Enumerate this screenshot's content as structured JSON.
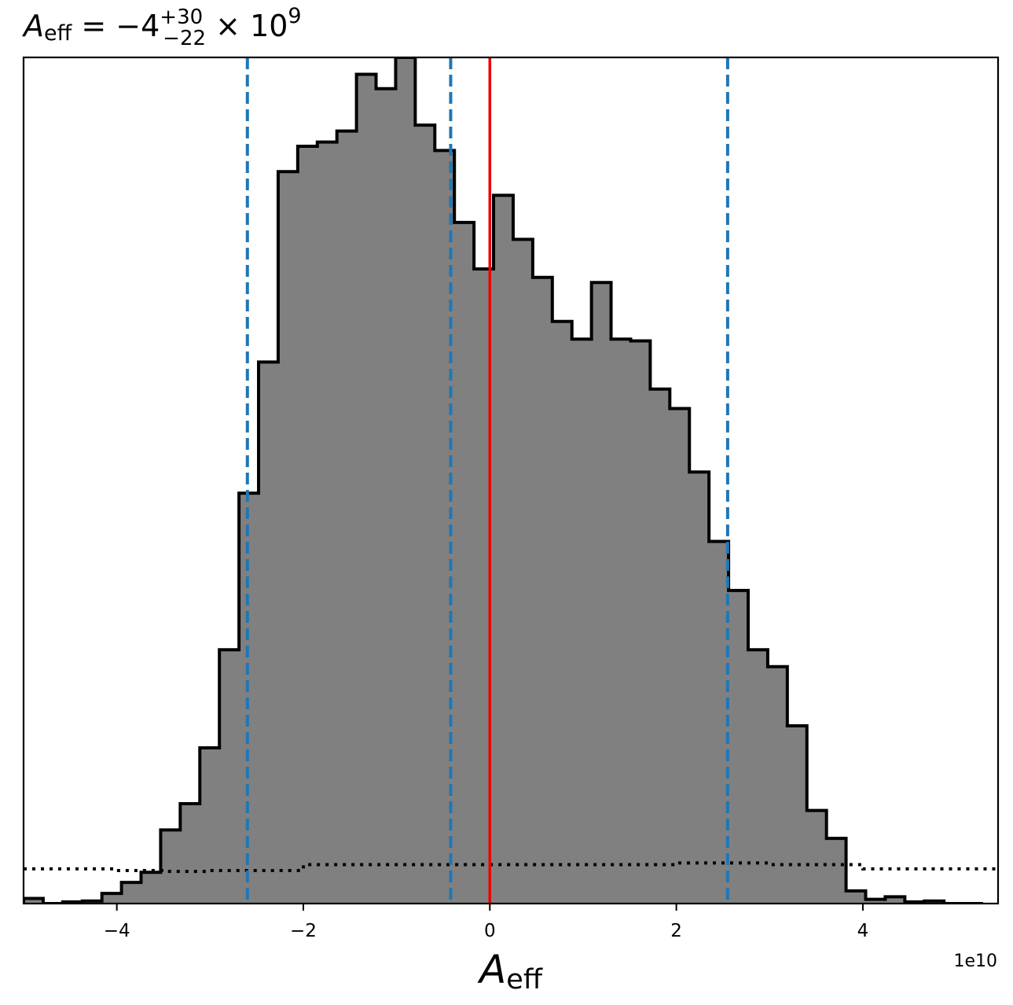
{
  "chart_data": {
    "type": "histogram",
    "title": {
      "symbol": "A",
      "symbol_sub": "eff",
      "equals": "=",
      "median": "−4",
      "err_plus": "+30",
      "err_minus": "−22",
      "times": "×",
      "power_base": "10",
      "power_exp": "9"
    },
    "xlabel": {
      "symbol": "A",
      "symbol_sub": "eff"
    },
    "x_offset_label": "1e10",
    "x_scale": 10000000000.0,
    "xlim": [
      -5.0,
      5.45
    ],
    "ylim": [
      0,
      1
    ],
    "y_ticks_shown": false,
    "grid": false,
    "x_ticks": [
      {
        "value": -4,
        "label": "−4"
      },
      {
        "value": -2,
        "label": "−2"
      },
      {
        "value": 0,
        "label": "0"
      },
      {
        "value": 2,
        "label": "2"
      },
      {
        "value": 4,
        "label": "4"
      }
    ],
    "bin_edges": [
      -5.0,
      -4.79,
      -4.58,
      -4.37,
      -4.16,
      -3.95,
      -3.74,
      -3.53,
      -3.32,
      -3.11,
      -2.9,
      -2.69,
      -2.48,
      -2.27,
      -2.06,
      -1.85,
      -1.64,
      -1.43,
      -1.22,
      -1.01,
      -0.8,
      -0.59,
      -0.38,
      -0.17,
      0.04,
      0.25,
      0.46,
      0.67,
      0.88,
      1.09,
      1.3,
      1.51,
      1.72,
      1.93,
      2.14,
      2.35,
      2.56,
      2.77,
      2.98,
      3.19,
      3.4,
      3.61,
      3.82,
      4.03,
      4.24,
      4.45,
      4.66,
      4.87,
      5.08,
      5.29
    ],
    "counts": [
      0.006,
      0.0,
      0.002,
      0.003,
      0.012,
      0.025,
      0.037,
      0.087,
      0.118,
      0.184,
      0.3,
      0.485,
      0.64,
      0.865,
      0.895,
      0.9,
      0.913,
      0.98,
      0.963,
      1.0,
      0.92,
      0.89,
      0.805,
      0.75,
      0.837,
      0.785,
      0.74,
      0.688,
      0.667,
      0.734,
      0.667,
      0.665,
      0.608,
      0.585,
      0.51,
      0.428,
      0.37,
      0.3,
      0.28,
      0.21,
      0.11,
      0.077,
      0.015,
      0.005,
      0.008,
      0.002,
      0.003,
      0.0,
      0.0
    ],
    "prior_dotted": {
      "x": [
        -5.0,
        -4.0,
        -3.5,
        -3.0,
        -2.0,
        2.0,
        3.0,
        4.0,
        5.45
      ],
      "y": [
        0.041,
        0.039,
        0.038,
        0.039,
        0.046,
        0.048,
        0.046,
        0.041,
        0.039
      ]
    },
    "vlines": [
      {
        "x": -2.6,
        "style": "dashed",
        "color": "#1f77b4"
      },
      {
        "x": -0.42,
        "style": "dashed",
        "color": "#1f77b4"
      },
      {
        "x": 2.55,
        "style": "dashed",
        "color": "#1f77b4"
      },
      {
        "x": 0.0,
        "style": "solid",
        "color": "#ee0000"
      }
    ],
    "colors": {
      "fill": "#808080",
      "edge": "#000000",
      "prior": "#000000"
    }
  }
}
